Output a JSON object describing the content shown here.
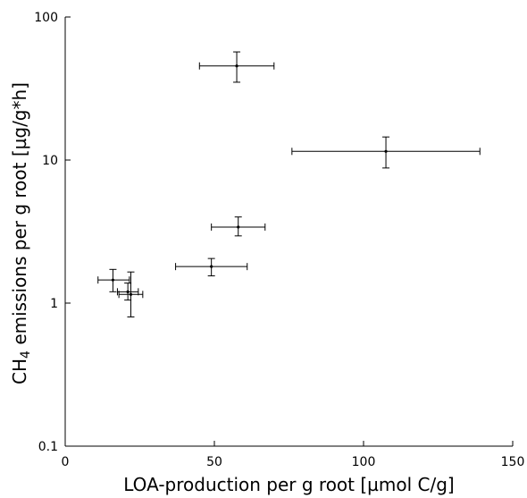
{
  "chart_data": {
    "type": "scatter",
    "xlabel": "LOA-production per g root [µmol C/g]",
    "ylabel": {
      "prefix": "CH",
      "subscript": "4",
      "suffix": " emissions per g root [µg/g*h]"
    },
    "x_scale": "linear",
    "y_scale": "log",
    "xlim": [
      0,
      150
    ],
    "ylim": [
      0.1,
      100
    ],
    "x_ticks": [
      0,
      50,
      100,
      150
    ],
    "x_tick_labels": [
      "0",
      "50",
      "100",
      "150"
    ],
    "y_ticks": [
      0.1,
      1,
      10,
      100
    ],
    "y_tick_labels": [
      "0.1",
      "1",
      "10",
      "100"
    ],
    "grid": false,
    "points": [
      {
        "x": 57.5,
        "y": 45.5,
        "x_err": [
          45,
          70
        ],
        "y_err": [
          35,
          57
        ]
      },
      {
        "x": 107.5,
        "y": 11.5,
        "x_err": [
          76,
          139
        ],
        "y_err": [
          8.8,
          14.5
        ]
      },
      {
        "x": 58,
        "y": 3.4,
        "x_err": [
          49,
          67
        ],
        "y_err": [
          2.95,
          4.0
        ]
      },
      {
        "x": 49,
        "y": 1.8,
        "x_err": [
          37,
          61
        ],
        "y_err": [
          1.55,
          2.05
        ]
      },
      {
        "x": 16,
        "y": 1.45,
        "x_err": [
          11,
          21.5
        ],
        "y_err": [
          1.2,
          1.72
        ]
      },
      {
        "x": 21,
        "y": 1.2,
        "x_err": [
          17.5,
          24.5
        ],
        "y_err": [
          1.05,
          1.38
        ]
      },
      {
        "x": 22,
        "y": 1.15,
        "x_err": [
          18,
          26
        ],
        "y_err": [
          0.8,
          1.65
        ]
      }
    ]
  }
}
